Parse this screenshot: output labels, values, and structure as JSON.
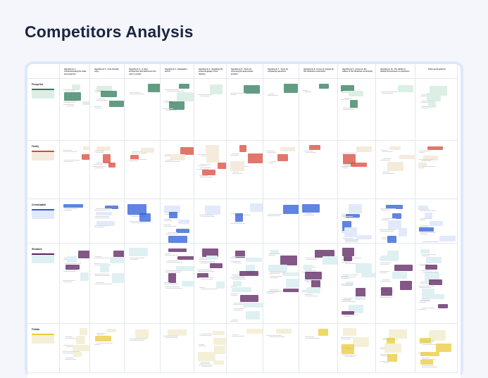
{
  "title": "Competitors Analysis",
  "columns": [
    "Hypothesis 1 - Communicating the value and expertise",
    "Hypothesis 2 - User-friendly copy",
    "Hypothesis 3 - A clear architecture that addresses the user's context",
    "Hypothesis 4 - Navigation and UI",
    "Hypothesis 5 - Speaking the visual language of the website",
    "Hypothesis 6 - Tools for choosing the appropriate product",
    "Hypothesis 7 - Tools for comparing questions",
    "Hypothesis 8 - Focus on impact for the Ukrainian community",
    "Hypothesis 9 - Focus on the values of the Ukrainian community",
    "Hypothesis 10 - The ability to quickly find answers to questions",
    "Other good patterns"
  ],
  "rows": [
    {
      "label": "Prospeline",
      "accent": "#2f7a5a",
      "light": "#dcefe4"
    },
    {
      "label": "Family",
      "accent": "#d9473a",
      "light": "#f5ebdc"
    },
    {
      "label": "Crowdcapital",
      "accent": "#2a5bd7",
      "light": "#e2e9fb"
    },
    {
      "label": "Wemakes",
      "accent": "#5a1f5e",
      "light": "#dff0f2"
    },
    {
      "label": "Fintabs",
      "accent": "#e9c93a",
      "light": "#f4f0d8"
    }
  ],
  "colors": {
    "board": "#dfe7fb",
    "title": "#1b2540"
  }
}
